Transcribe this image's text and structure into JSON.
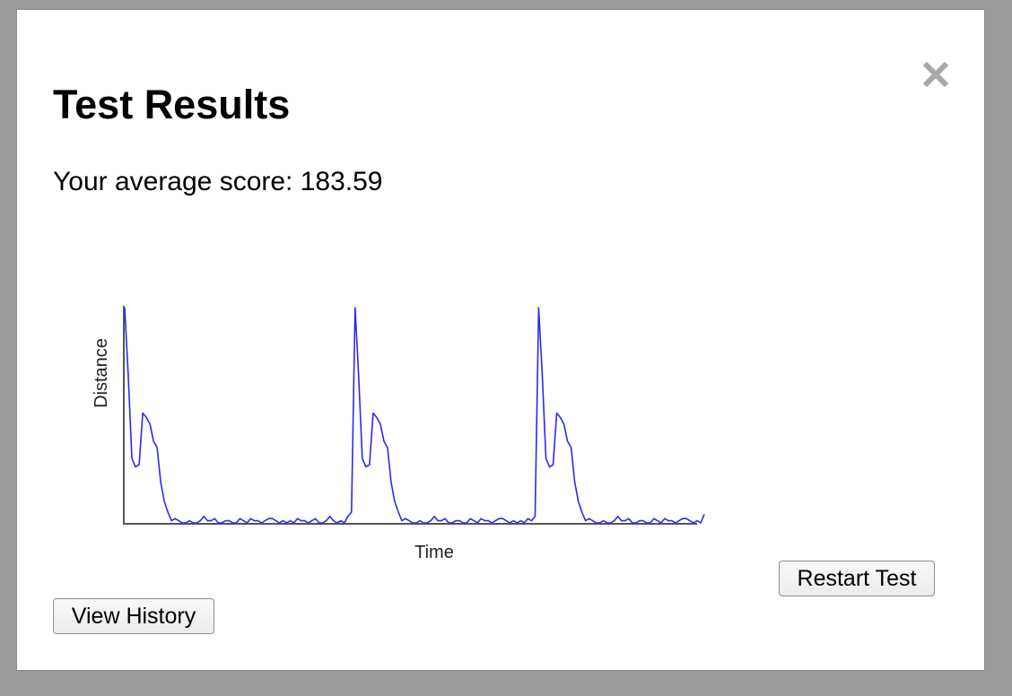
{
  "dialog": {
    "title": "Test Results",
    "score_text": "Your average score: 183.59",
    "close_icon": "close-icon"
  },
  "buttons": {
    "restart_label": "Restart Test",
    "history_label": "View History"
  },
  "colors": {
    "line": "#2a2af0",
    "axis": "#555555",
    "close": "#a8a8a8"
  },
  "chart_data": {
    "type": "line",
    "title": "",
    "xlabel": "Time",
    "ylabel": "Distance",
    "xlim": [
      0,
      159
    ],
    "ylim": [
      0,
      100
    ],
    "grid": false,
    "legend": "none",
    "series": [
      {
        "name": "Distance",
        "values": [
          100,
          68,
          30,
          26,
          27,
          51,
          49,
          46,
          38,
          35,
          19,
          10,
          5,
          1,
          2,
          1,
          0,
          0,
          1,
          0,
          0,
          1,
          3,
          1,
          1,
          2,
          0,
          0,
          1,
          1,
          0,
          0,
          2,
          1,
          0,
          2,
          1,
          1,
          0,
          1,
          2,
          2,
          1,
          0,
          1,
          0,
          1,
          0,
          2,
          1,
          1,
          0,
          1,
          2,
          0,
          0,
          1,
          3,
          1,
          0,
          1,
          0,
          3,
          5,
          100,
          68,
          30,
          26,
          27,
          51,
          49,
          46,
          38,
          35,
          19,
          10,
          5,
          1,
          2,
          1,
          0,
          0,
          1,
          0,
          0,
          1,
          3,
          1,
          1,
          2,
          0,
          0,
          1,
          1,
          0,
          0,
          2,
          1,
          0,
          2,
          1,
          1,
          0,
          1,
          2,
          2,
          1,
          0,
          1,
          0,
          1,
          0,
          2,
          1,
          3,
          100,
          68,
          30,
          26,
          27,
          51,
          49,
          46,
          38,
          35,
          19,
          10,
          5,
          1,
          2,
          1,
          0,
          0,
          1,
          0,
          0,
          1,
          3,
          1,
          1,
          2,
          0,
          0,
          1,
          1,
          0,
          0,
          2,
          1,
          0,
          2,
          1,
          1,
          0,
          1,
          2,
          2,
          1,
          0,
          1,
          0,
          4
        ]
      }
    ]
  }
}
